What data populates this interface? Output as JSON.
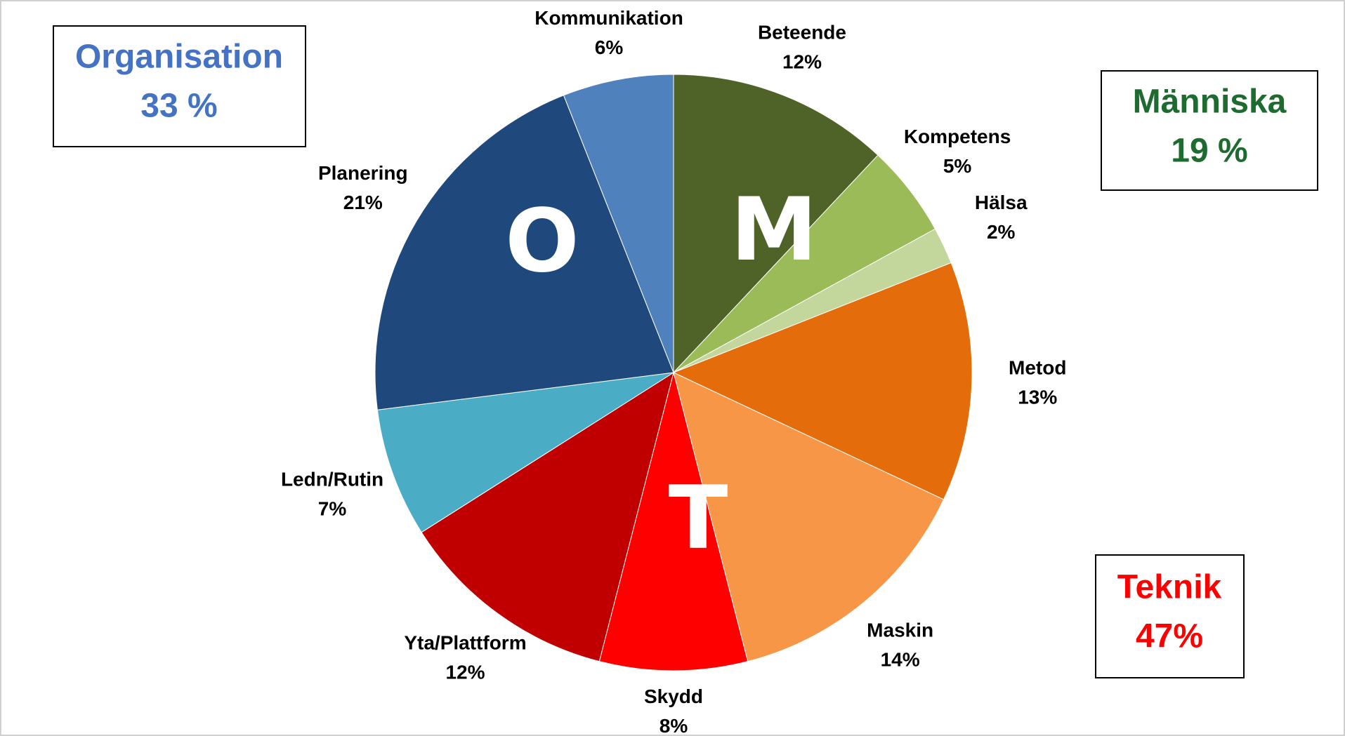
{
  "chart_data": {
    "type": "pie",
    "categories": [
      "Beteende",
      "Kompetens",
      "Hälsa",
      "Metod",
      "Maskin",
      "Skydd",
      "Yta/Plattform",
      "Ledn/Rutin",
      "Planering",
      "Kommunikation"
    ],
    "values": [
      12,
      5,
      2,
      13,
      14,
      8,
      12,
      7,
      21,
      6
    ],
    "value_labels": [
      "12%",
      "5%",
      "2%",
      "13%",
      "14%",
      "8%",
      "12%",
      "7%",
      "21%",
      "6%"
    ],
    "colors": [
      "#4f6228",
      "#9bbb59",
      "#c3d69b",
      "#e46c0a",
      "#f79646",
      "#ff0000",
      "#c00000",
      "#4bacc6",
      "#1f497d",
      "#4f81bd"
    ],
    "annotations": [
      "O",
      "M",
      "T"
    ],
    "groups": [
      {
        "name": "Organisation",
        "label": "33 %",
        "color": "#4472c4"
      },
      {
        "name": "Människa",
        "label": "19 %",
        "color": "#1e6b30"
      },
      {
        "name": "Teknik",
        "label": "47%",
        "color": "#ff0000"
      }
    ]
  }
}
